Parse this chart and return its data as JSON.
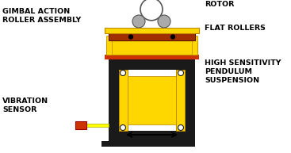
{
  "bg_color": "#ffffff",
  "yellow": "#FFD700",
  "brown_red": "#A03000",
  "orange_red": "#CC3300",
  "dark": "#1A1A1A",
  "mid_gray": "#555555",
  "rotor_gray": "#AAAAAA",
  "labels": {
    "rotor": "ROTOR",
    "gimbal": "GIMBAL ACTION\nROLLER ASSEMBLY",
    "flat_rollers": "FLAT ROLLERS",
    "vibration": "VIBRATION\nSENSOR",
    "pendulum": "HIGH SENSITIVITY\nPENDULUM\nSUSPENSION"
  },
  "label_fontsize": 6.8,
  "label_color": "#000000",
  "figw": 3.67,
  "figh": 1.93,
  "dpi": 100
}
